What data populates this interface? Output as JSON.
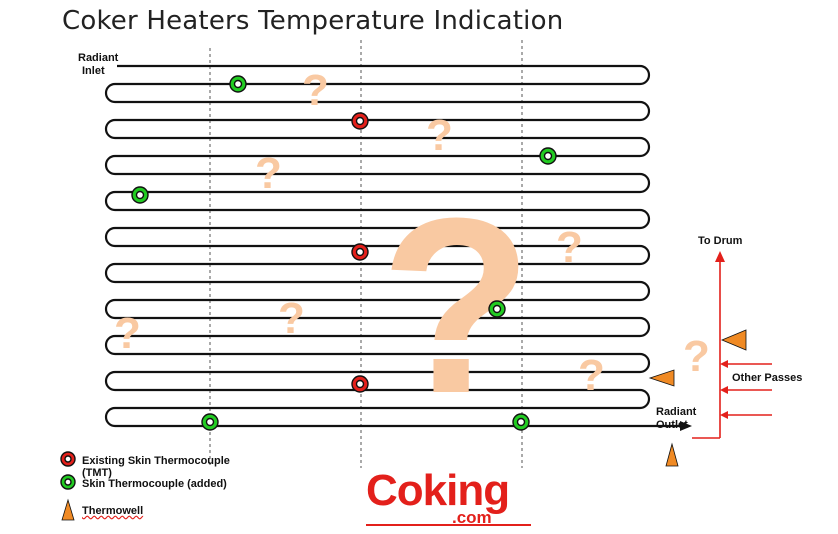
{
  "title": "Coker Heaters Temperature Indication",
  "labels": {
    "radiant_inlet_1": "Radiant",
    "radiant_inlet_2": "Inlet",
    "to_drum": "To Drum",
    "other_passes": "Other Passes",
    "radiant_outlet_1": "Radiant",
    "radiant_outlet_2": "Outlet"
  },
  "legend": {
    "existing_tmt_1": "Existing Skin Thermocouple",
    "existing_tmt_2": "(TMT)",
    "added_tc": "Skin Thermocouple (added)",
    "thermowell": "Thermowell"
  },
  "logo": {
    "main": "Coking",
    "sub": ".com"
  },
  "marks": {
    "question": "?"
  },
  "colors": {
    "tube": "#111111",
    "existing_tmt": "#e3201b",
    "added_tc": "#22cc22",
    "thermowell": "#f08a24",
    "question": "#f9c9a2",
    "flow_lines": "#e3201b",
    "logo": "#e3201b"
  }
}
